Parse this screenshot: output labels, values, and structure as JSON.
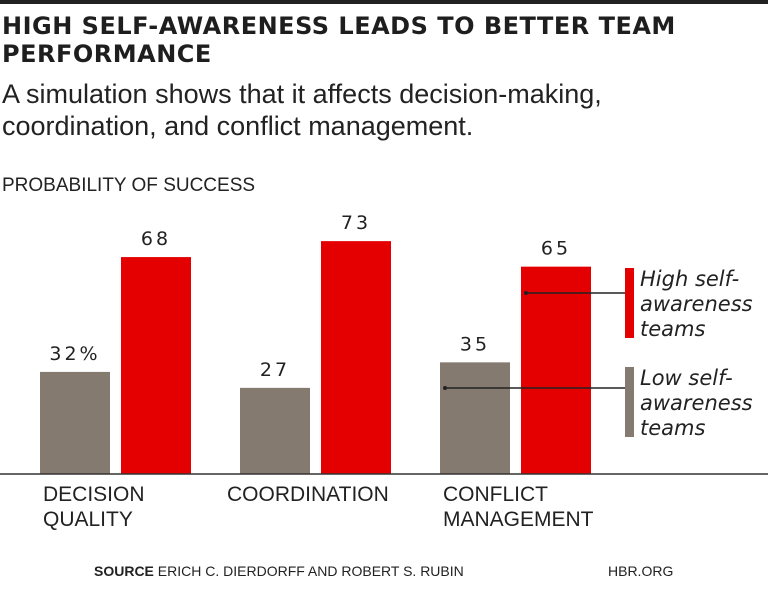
{
  "chart_data": {
    "type": "bar",
    "title": "HIGH SELF-AWARENESS LEADS TO BETTER TEAM PERFORMANCE",
    "subtitle": "A simulation shows that it affects decision-making, coordination, and conflict management.",
    "ylabel": "PROBABILITY OF SUCCESS",
    "xlabel": "",
    "categories": [
      [
        "DECISION",
        "QUALITY"
      ],
      [
        "COORDINATION"
      ],
      [
        "CONFLICT",
        "MANAGEMENT"
      ]
    ],
    "series": [
      {
        "name": "Low self-awareness teams",
        "legend_lines": [
          "Low self-",
          "awareness",
          "teams"
        ],
        "color": "#857a6f",
        "values": [
          32,
          27,
          35
        ],
        "labels": [
          "32%",
          "27",
          "35"
        ]
      },
      {
        "name": "High self-awareness teams",
        "legend_lines": [
          "High self-",
          "awareness",
          "teams"
        ],
        "color": "#e40000",
        "values": [
          68,
          73,
          65
        ],
        "labels": [
          "68",
          "73",
          "65"
        ]
      }
    ],
    "ylim": [
      0,
      75
    ],
    "grid": false,
    "legend": "right"
  },
  "footer": {
    "source_label": "SOURCE",
    "source_text": "ERICH C. DIERDORFF AND ROBERT S. RUBIN",
    "site": "HBR.ORG"
  }
}
